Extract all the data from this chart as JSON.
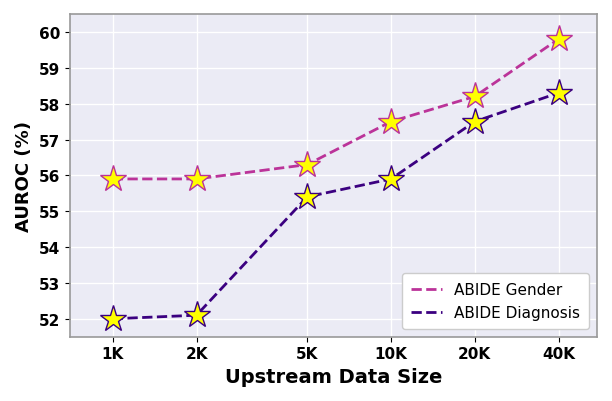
{
  "x_labels": [
    "1K",
    "2K",
    "5K",
    "10K",
    "20K",
    "40K"
  ],
  "x_values": [
    1000,
    2000,
    5000,
    10000,
    20000,
    40000
  ],
  "gender_values": [
    55.9,
    55.9,
    56.3,
    57.5,
    58.2,
    59.8
  ],
  "diagnosis_values": [
    52.0,
    52.1,
    55.4,
    55.9,
    57.5,
    58.3
  ],
  "gender_color": "#BB3399",
  "diagnosis_color": "#3B0080",
  "marker": "*",
  "marker_size": 20,
  "marker_facecolor": "yellow",
  "marker_edgewidth": 1.0,
  "linewidth": 2.0,
  "linestyle": "--",
  "xlabel": "Upstream Data Size",
  "ylabel": "AUROC (%)",
  "ylim": [
    51.5,
    60.5
  ],
  "yticks": [
    52,
    53,
    54,
    55,
    56,
    57,
    58,
    59,
    60
  ],
  "legend_labels": [
    "ABIDE Gender",
    "ABIDE Diagnosis"
  ],
  "legend_loc": "lower right",
  "grid": true,
  "background_color": "#ebebf5",
  "xlabel_fontsize": 14,
  "ylabel_fontsize": 13,
  "tick_fontsize": 11,
  "legend_fontsize": 11
}
